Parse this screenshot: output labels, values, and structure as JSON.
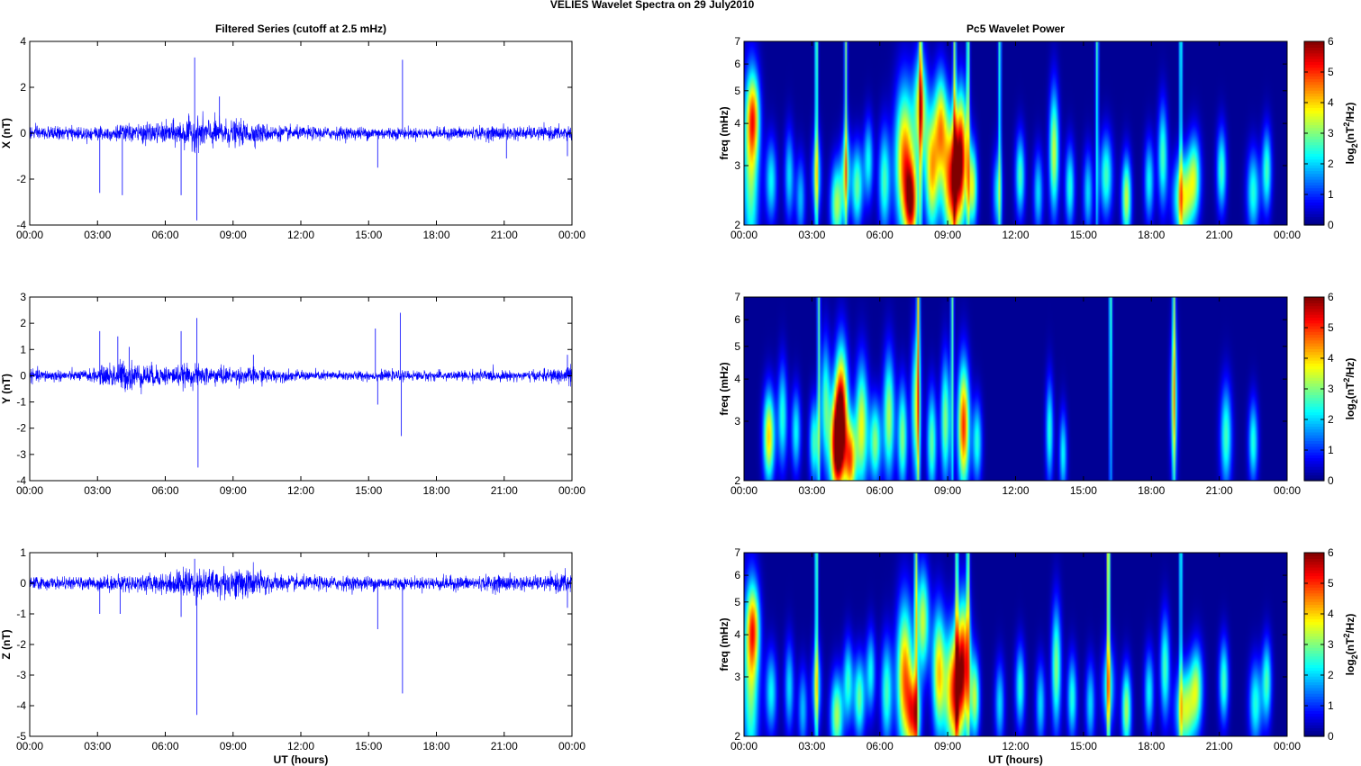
{
  "figure": {
    "title_left": "VELIES Wavelet Spectra on 29 July",
    "title_right": "2010",
    "time_ticks": [
      "00:00",
      "03:00",
      "06:00",
      "09:00",
      "12:00",
      "15:00",
      "18:00",
      "21:00",
      "00:00"
    ],
    "xlabel": "UT (hours)"
  },
  "chart_data": [
    {
      "type": "line",
      "title": "Filtered Series (cutoff at 2.5 mHz)",
      "ylabel": "X (nT)",
      "ylim": [
        -4,
        4
      ],
      "yticks": [
        "-4",
        "-2",
        "0",
        "2",
        "4"
      ],
      "x_unit": "UT hours",
      "noise_envelope": [
        [
          0,
          0.35
        ],
        [
          1,
          0.3
        ],
        [
          2,
          0.3
        ],
        [
          3,
          0.35
        ],
        [
          4,
          0.4
        ],
        [
          5,
          0.45
        ],
        [
          6,
          0.5
        ],
        [
          6.5,
          0.6
        ],
        [
          7,
          0.7
        ],
        [
          7.5,
          0.75
        ],
        [
          8,
          0.7
        ],
        [
          9,
          0.6
        ],
        [
          10,
          0.5
        ],
        [
          11,
          0.35
        ],
        [
          12,
          0.3
        ],
        [
          13,
          0.3
        ],
        [
          14,
          0.3
        ],
        [
          15,
          0.3
        ],
        [
          16,
          0.3
        ],
        [
          17,
          0.25
        ],
        [
          18,
          0.25
        ],
        [
          19,
          0.3
        ],
        [
          20,
          0.3
        ],
        [
          21,
          0.35
        ],
        [
          22,
          0.3
        ],
        [
          23,
          0.3
        ],
        [
          24,
          0.4
        ]
      ],
      "spikes": [
        [
          3.1,
          -2.6
        ],
        [
          4.1,
          -2.7
        ],
        [
          6.7,
          -2.7
        ],
        [
          7.3,
          3.3
        ],
        [
          7.4,
          -3.8
        ],
        [
          8.4,
          1.6
        ],
        [
          15.4,
          -1.5
        ],
        [
          16.5,
          3.2
        ],
        [
          21.1,
          -1.1
        ],
        [
          23.8,
          -1.0
        ]
      ],
      "color": "#0000ff"
    },
    {
      "type": "line",
      "ylabel": "Y (nT)",
      "ylim": [
        -4,
        3
      ],
      "yticks": [
        "-4",
        "-3",
        "-2",
        "-1",
        "0",
        "1",
        "2",
        "3"
      ],
      "x_unit": "UT hours",
      "noise_envelope": [
        [
          0,
          0.25
        ],
        [
          1,
          0.25
        ],
        [
          2,
          0.2
        ],
        [
          3,
          0.3
        ],
        [
          3.5,
          0.5
        ],
        [
          4,
          0.65
        ],
        [
          4.5,
          0.6
        ],
        [
          5,
          0.5
        ],
        [
          6,
          0.4
        ],
        [
          7,
          0.45
        ],
        [
          8,
          0.4
        ],
        [
          9,
          0.35
        ],
        [
          10,
          0.35
        ],
        [
          11,
          0.25
        ],
        [
          12,
          0.2
        ],
        [
          13,
          0.2
        ],
        [
          14,
          0.2
        ],
        [
          15,
          0.2
        ],
        [
          16,
          0.2
        ],
        [
          17,
          0.2
        ],
        [
          18,
          0.2
        ],
        [
          19,
          0.2
        ],
        [
          20,
          0.25
        ],
        [
          21,
          0.2
        ],
        [
          22,
          0.2
        ],
        [
          23,
          0.25
        ],
        [
          24,
          0.45
        ]
      ],
      "spikes": [
        [
          3.1,
          1.7
        ],
        [
          3.9,
          1.5
        ],
        [
          4.4,
          1.1
        ],
        [
          6.7,
          1.7
        ],
        [
          7.4,
          2.2
        ],
        [
          7.45,
          -3.5
        ],
        [
          9.9,
          0.8
        ],
        [
          15.3,
          1.8
        ],
        [
          15.4,
          -1.1
        ],
        [
          16.4,
          2.4
        ],
        [
          16.45,
          -2.3
        ],
        [
          23.8,
          0.8
        ]
      ],
      "color": "#0000ff"
    },
    {
      "type": "line",
      "ylabel": "Z (nT)",
      "xlabel": "UT (hours)",
      "ylim": [
        -5,
        1
      ],
      "yticks": [
        "-5",
        "-4",
        "-3",
        "-2",
        "-1",
        "0",
        "1"
      ],
      "x_unit": "UT hours",
      "noise_envelope": [
        [
          0,
          0.25
        ],
        [
          1,
          0.2
        ],
        [
          2,
          0.2
        ],
        [
          3,
          0.25
        ],
        [
          4,
          0.3
        ],
        [
          5,
          0.3
        ],
        [
          6,
          0.35
        ],
        [
          6.5,
          0.45
        ],
        [
          7,
          0.55
        ],
        [
          7.5,
          0.55
        ],
        [
          8,
          0.5
        ],
        [
          9,
          0.55
        ],
        [
          10,
          0.5
        ],
        [
          11,
          0.3
        ],
        [
          12,
          0.25
        ],
        [
          13,
          0.25
        ],
        [
          14,
          0.25
        ],
        [
          15,
          0.25
        ],
        [
          16,
          0.25
        ],
        [
          17,
          0.2
        ],
        [
          18,
          0.25
        ],
        [
          19,
          0.25
        ],
        [
          20,
          0.25
        ],
        [
          21,
          0.3
        ],
        [
          22,
          0.25
        ],
        [
          23,
          0.25
        ],
        [
          24,
          0.45
        ]
      ],
      "spikes": [
        [
          3.1,
          -1.0
        ],
        [
          4.0,
          -1.0
        ],
        [
          6.7,
          -1.1
        ],
        [
          7.3,
          0.8
        ],
        [
          7.4,
          -4.3
        ],
        [
          15.4,
          -1.5
        ],
        [
          16.5,
          -3.6
        ],
        [
          23.8,
          -0.8
        ]
      ],
      "color": "#0000ff"
    },
    {
      "type": "heatmap",
      "title": "Pc5 Wavelet Power",
      "ylabel": "freq (mHz)",
      "yscale": "log",
      "ylim": [
        2,
        7
      ],
      "yticks": [
        "2",
        "3",
        "4",
        "5",
        "6",
        "7"
      ],
      "x_unit": "UT hours",
      "colorbar": {
        "label": "log2(nT^2/Hz)",
        "label_main": "log",
        "label_sub": "2",
        "label_rest": "(nT",
        "label_sup": "2",
        "label_end": "/Hz)",
        "range": [
          0,
          6
        ],
        "ticks": [
          "0",
          "1",
          "2",
          "3",
          "4",
          "5",
          "6"
        ],
        "colormap": "jet"
      },
      "blobs": [
        [
          0.3,
          2.9,
          3.0,
          0.25,
          0.45
        ],
        [
          0.4,
          4.2,
          3.2,
          0.2,
          0.2
        ],
        [
          1.2,
          2.7,
          2.2,
          0.18,
          0.2
        ],
        [
          2.0,
          2.8,
          2.0,
          0.15,
          0.22
        ],
        [
          2.5,
          2.4,
          1.8,
          0.15,
          0.2
        ],
        [
          3.2,
          2.8,
          2.2,
          0.15,
          0.2
        ],
        [
          4.1,
          2.3,
          3.2,
          0.2,
          0.2
        ],
        [
          4.5,
          2.9,
          2.4,
          0.15,
          0.2
        ],
        [
          5.0,
          2.6,
          2.8,
          0.18,
          0.2
        ],
        [
          5.5,
          3.1,
          2.2,
          0.15,
          0.2
        ],
        [
          6.2,
          2.7,
          2.6,
          0.18,
          0.25
        ],
        [
          7.1,
          3.1,
          4.6,
          0.3,
          0.35
        ],
        [
          7.4,
          2.3,
          4.3,
          0.2,
          0.2
        ],
        [
          7.8,
          4.5,
          3.6,
          0.2,
          0.25
        ],
        [
          8.3,
          2.9,
          4.0,
          0.22,
          0.3
        ],
        [
          8.7,
          4.0,
          3.5,
          0.2,
          0.25
        ],
        [
          9.2,
          2.7,
          5.2,
          0.3,
          0.3
        ],
        [
          9.6,
          3.3,
          4.4,
          0.2,
          0.3
        ],
        [
          10.1,
          2.6,
          3.4,
          0.15,
          0.2
        ],
        [
          11.2,
          2.5,
          2.0,
          0.15,
          0.2
        ],
        [
          12.2,
          2.8,
          2.6,
          0.15,
          0.2
        ],
        [
          13.0,
          2.5,
          2.0,
          0.15,
          0.2
        ],
        [
          13.7,
          3.3,
          3.4,
          0.15,
          0.3
        ],
        [
          14.4,
          2.6,
          2.4,
          0.15,
          0.2
        ],
        [
          15.2,
          2.5,
          2.0,
          0.15,
          0.2
        ],
        [
          16.0,
          2.8,
          2.6,
          0.2,
          0.2
        ],
        [
          16.9,
          2.4,
          3.4,
          0.15,
          0.2
        ],
        [
          17.9,
          2.7,
          2.2,
          0.15,
          0.2
        ],
        [
          18.5,
          3.2,
          2.6,
          0.15,
          0.25
        ],
        [
          19.4,
          2.4,
          3.6,
          0.3,
          0.2
        ],
        [
          19.9,
          2.8,
          2.8,
          0.2,
          0.2
        ],
        [
          21.1,
          2.9,
          2.6,
          0.15,
          0.2
        ],
        [
          22.5,
          2.5,
          2.4,
          0.2,
          0.2
        ],
        [
          23.1,
          2.9,
          2.6,
          0.15,
          0.2
        ]
      ],
      "vertical_streaks": [
        [
          3.2,
          3.0
        ],
        [
          4.5,
          3.0
        ],
        [
          7.8,
          3.0
        ],
        [
          9.3,
          3.0
        ],
        [
          9.9,
          3.0
        ],
        [
          11.3,
          2.6
        ],
        [
          15.6,
          2.6
        ],
        [
          19.3,
          2.6
        ]
      ]
    },
    {
      "type": "heatmap",
      "ylabel": "freq (mHz)",
      "yscale": "log",
      "ylim": [
        2,
        7
      ],
      "yticks": [
        "2",
        "3",
        "4",
        "5",
        "6",
        "7"
      ],
      "x_unit": "UT hours",
      "colorbar": {
        "label": "log2(nT^2/Hz)",
        "label_main": "log",
        "label_sub": "2",
        "label_rest": "(nT",
        "label_sup": "2",
        "label_end": "/Hz)",
        "range": [
          0,
          6
        ],
        "ticks": [
          "0",
          "1",
          "2",
          "3",
          "4",
          "5",
          "6"
        ],
        "colormap": "jet"
      },
      "blobs": [
        [
          1.1,
          2.7,
          4.0,
          0.18,
          0.22
        ],
        [
          1.7,
          3.1,
          2.4,
          0.15,
          0.25
        ],
        [
          2.3,
          2.8,
          2.2,
          0.15,
          0.2
        ],
        [
          3.1,
          2.6,
          2.6,
          0.15,
          0.2
        ],
        [
          3.6,
          3.4,
          2.6,
          0.15,
          0.3
        ],
        [
          4.1,
          2.5,
          5.6,
          0.22,
          0.25
        ],
        [
          4.3,
          3.3,
          5.0,
          0.2,
          0.3
        ],
        [
          4.7,
          2.3,
          4.4,
          0.18,
          0.2
        ],
        [
          5.2,
          2.9,
          3.6,
          0.2,
          0.3
        ],
        [
          5.8,
          2.6,
          3.0,
          0.18,
          0.2
        ],
        [
          6.4,
          3.1,
          3.2,
          0.18,
          0.3
        ],
        [
          7.0,
          2.7,
          3.0,
          0.15,
          0.25
        ],
        [
          7.6,
          3.3,
          3.0,
          0.15,
          0.35
        ],
        [
          8.3,
          2.6,
          2.8,
          0.15,
          0.25
        ],
        [
          8.9,
          3.0,
          3.0,
          0.15,
          0.3
        ],
        [
          9.7,
          2.9,
          5.0,
          0.18,
          0.3
        ],
        [
          10.3,
          2.6,
          2.4,
          0.15,
          0.2
        ],
        [
          13.5,
          2.8,
          2.4,
          0.12,
          0.25
        ],
        [
          14.1,
          2.4,
          2.2,
          0.12,
          0.2
        ],
        [
          19.0,
          3.4,
          2.4,
          0.12,
          0.35
        ],
        [
          21.3,
          2.7,
          2.6,
          0.18,
          0.25
        ],
        [
          22.5,
          2.6,
          2.4,
          0.15,
          0.2
        ]
      ],
      "vertical_streaks": [
        [
          3.3,
          2.8
        ],
        [
          7.7,
          3.6
        ],
        [
          9.2,
          2.8
        ],
        [
          16.2,
          2.8
        ],
        [
          19.0,
          2.8
        ]
      ]
    },
    {
      "type": "heatmap",
      "ylabel": "freq (mHz)",
      "xlabel": "UT (hours)",
      "yscale": "log",
      "ylim": [
        2,
        7
      ],
      "yticks": [
        "2",
        "3",
        "4",
        "5",
        "6",
        "7"
      ],
      "x_unit": "UT hours",
      "colorbar": {
        "label": "log2(nT^2/Hz)",
        "label_main": "log",
        "label_sub": "2",
        "label_rest": "(nT",
        "label_sup": "2",
        "label_end": "/Hz)",
        "range": [
          0,
          6
        ],
        "ticks": [
          "0",
          "1",
          "2",
          "3",
          "4",
          "5",
          "6"
        ],
        "colormap": "jet"
      },
      "blobs": [
        [
          0.3,
          2.9,
          3.0,
          0.25,
          0.45
        ],
        [
          0.4,
          4.2,
          3.2,
          0.2,
          0.2
        ],
        [
          1.2,
          2.7,
          2.2,
          0.18,
          0.2
        ],
        [
          2.0,
          2.8,
          2.0,
          0.15,
          0.22
        ],
        [
          2.6,
          2.4,
          1.8,
          0.15,
          0.2
        ],
        [
          3.2,
          2.8,
          2.2,
          0.15,
          0.2
        ],
        [
          4.1,
          2.3,
          3.2,
          0.2,
          0.2
        ],
        [
          4.6,
          2.9,
          2.4,
          0.15,
          0.2
        ],
        [
          5.1,
          2.6,
          2.8,
          0.18,
          0.2
        ],
        [
          5.6,
          3.1,
          2.2,
          0.15,
          0.2
        ],
        [
          6.3,
          2.7,
          2.6,
          0.18,
          0.25
        ],
        [
          7.1,
          3.0,
          4.5,
          0.25,
          0.35
        ],
        [
          7.5,
          2.3,
          4.2,
          0.2,
          0.2
        ],
        [
          7.9,
          4.4,
          3.4,
          0.2,
          0.25
        ],
        [
          8.6,
          3.1,
          3.8,
          0.2,
          0.3
        ],
        [
          9.3,
          2.7,
          5.0,
          0.3,
          0.3
        ],
        [
          9.7,
          3.4,
          4.2,
          0.2,
          0.3
        ],
        [
          10.2,
          2.6,
          3.2,
          0.15,
          0.2
        ],
        [
          11.3,
          2.5,
          2.0,
          0.15,
          0.2
        ],
        [
          12.2,
          2.8,
          2.4,
          0.15,
          0.2
        ],
        [
          13.1,
          2.5,
          2.0,
          0.15,
          0.2
        ],
        [
          13.8,
          3.2,
          3.0,
          0.15,
          0.3
        ],
        [
          14.5,
          2.6,
          2.4,
          0.15,
          0.2
        ],
        [
          15.3,
          2.5,
          2.0,
          0.15,
          0.2
        ],
        [
          16.1,
          2.8,
          2.4,
          0.2,
          0.2
        ],
        [
          16.9,
          2.4,
          3.2,
          0.15,
          0.2
        ],
        [
          17.9,
          2.7,
          2.2,
          0.15,
          0.2
        ],
        [
          18.6,
          3.2,
          2.6,
          0.15,
          0.25
        ],
        [
          19.5,
          2.4,
          3.4,
          0.3,
          0.2
        ],
        [
          20.0,
          2.8,
          2.8,
          0.2,
          0.2
        ],
        [
          21.2,
          2.9,
          2.6,
          0.15,
          0.2
        ],
        [
          22.6,
          2.5,
          2.4,
          0.2,
          0.2
        ],
        [
          23.1,
          2.9,
          2.6,
          0.15,
          0.2
        ]
      ],
      "vertical_streaks": [
        [
          3.2,
          3.0
        ],
        [
          7.6,
          3.0
        ],
        [
          9.4,
          3.0
        ],
        [
          9.9,
          3.0
        ],
        [
          16.1,
          4.2
        ],
        [
          19.3,
          2.6
        ]
      ]
    }
  ]
}
